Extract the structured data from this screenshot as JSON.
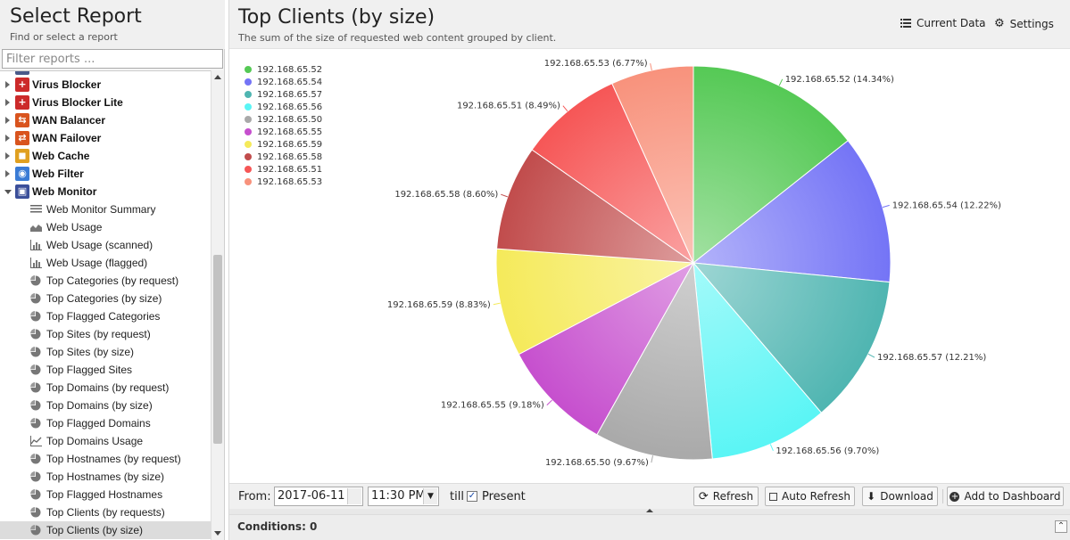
{
  "left": {
    "title": "Select Report",
    "subtitle": "Find or select a report",
    "filter_placeholder": "Filter reports ..."
  },
  "tree": {
    "apps": [
      {
        "label": "Virus Blocker",
        "icon": "virus-blocker-icon",
        "color": "#cc2a2a"
      },
      {
        "label": "Virus Blocker Lite",
        "icon": "virus-blocker-lite-icon",
        "color": "#cc2a2a"
      },
      {
        "label": "WAN Balancer",
        "icon": "wan-balancer-icon",
        "color": "#d9541e"
      },
      {
        "label": "WAN Failover",
        "icon": "wan-failover-icon",
        "color": "#d9541e"
      },
      {
        "label": "Web Cache",
        "icon": "web-cache-icon",
        "color": "#e0a020"
      },
      {
        "label": "Web Filter",
        "icon": "web-filter-icon",
        "color": "#3a7bd5"
      },
      {
        "label": "Web Monitor",
        "icon": "web-monitor-icon",
        "color": "#3b4f9a"
      }
    ],
    "reports": [
      {
        "label": "Web Monitor Summary",
        "icon": "text-report-icon"
      },
      {
        "label": "Web Usage",
        "icon": "area-chart-icon"
      },
      {
        "label": "Web Usage (scanned)",
        "icon": "bar-chart-icon"
      },
      {
        "label": "Web Usage (flagged)",
        "icon": "bar-chart-icon"
      },
      {
        "label": "Top Categories (by request)",
        "icon": "pie-chart-icon"
      },
      {
        "label": "Top Categories (by size)",
        "icon": "pie-chart-icon"
      },
      {
        "label": "Top Flagged Categories",
        "icon": "pie-chart-icon"
      },
      {
        "label": "Top Sites (by request)",
        "icon": "pie-chart-icon"
      },
      {
        "label": "Top Sites (by size)",
        "icon": "pie-chart-icon"
      },
      {
        "label": "Top Flagged Sites",
        "icon": "pie-chart-icon"
      },
      {
        "label": "Top Domains (by request)",
        "icon": "pie-chart-icon"
      },
      {
        "label": "Top Domains (by size)",
        "icon": "pie-chart-icon"
      },
      {
        "label": "Top Flagged Domains",
        "icon": "pie-chart-icon"
      },
      {
        "label": "Top Domains Usage",
        "icon": "line-chart-icon"
      },
      {
        "label": "Top Hostnames (by request)",
        "icon": "pie-chart-icon"
      },
      {
        "label": "Top Hostnames (by size)",
        "icon": "pie-chart-icon"
      },
      {
        "label": "Top Flagged Hostnames",
        "icon": "pie-chart-icon"
      },
      {
        "label": "Top Clients (by requests)",
        "icon": "pie-chart-icon"
      },
      {
        "label": "Top Clients (by size)",
        "icon": "pie-chart-icon",
        "selected": true
      }
    ]
  },
  "main": {
    "title": "Top Clients (by size)",
    "subtitle": "The sum of the size of requested web content grouped by client.",
    "current_data_label": "Current Data",
    "settings_label": "Settings"
  },
  "chart_data": {
    "type": "pie",
    "title": "",
    "legend_position": "top-left",
    "slices": [
      {
        "name": "192.168.65.52",
        "value": 14.34,
        "color": "#55c955"
      },
      {
        "name": "192.168.65.54",
        "value": 12.22,
        "color": "#7474f6"
      },
      {
        "name": "192.168.65.57",
        "value": 12.21,
        "color": "#4fb5b1"
      },
      {
        "name": "192.168.65.56",
        "value": 9.7,
        "color": "#5af5f5"
      },
      {
        "name": "192.168.65.50",
        "value": 9.67,
        "color": "#a9a9a9"
      },
      {
        "name": "192.168.65.55",
        "value": 9.18,
        "color": "#c64fce"
      },
      {
        "name": "192.168.65.59",
        "value": 8.83,
        "color": "#f5ea5a"
      },
      {
        "name": "192.168.65.58",
        "value": 8.6,
        "color": "#c14c4c"
      },
      {
        "name": "192.168.65.51",
        "value": 8.49,
        "color": "#f65656"
      },
      {
        "name": "192.168.65.53",
        "value": 6.77,
        "color": "#f8927c"
      }
    ]
  },
  "toolbar": {
    "from_label": "From:",
    "date_value": "2017-06-11",
    "time_value": "11:30 PM",
    "till_label": "till",
    "present_label": "Present",
    "present_checked": "✓",
    "refresh_label": "Refresh",
    "auto_refresh_label": "Auto Refresh",
    "download_label": "Download",
    "add_dashboard_label": "Add to Dashboard"
  },
  "conditions": {
    "label": "Conditions: 0",
    "toggle": "⌃"
  }
}
